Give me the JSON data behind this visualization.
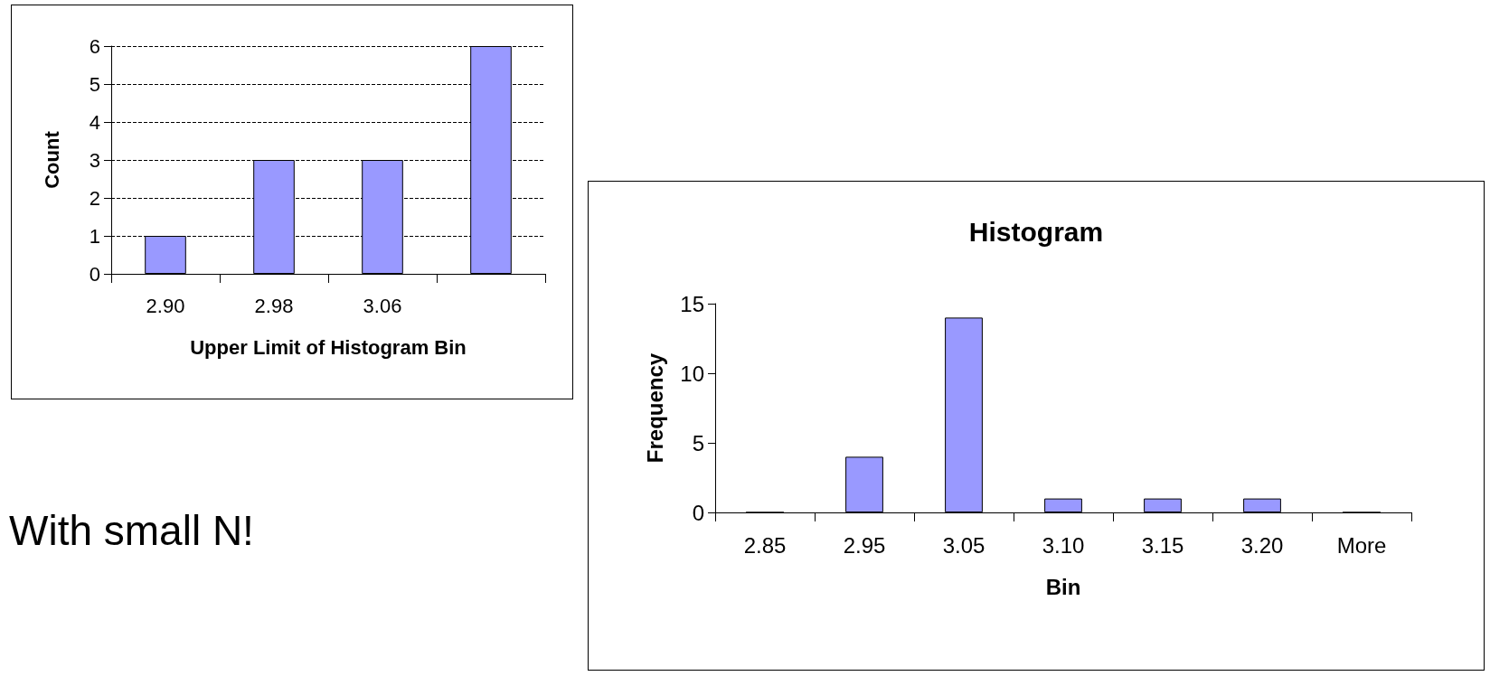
{
  "chart_data": [
    {
      "type": "bar",
      "xlabel": "Upper Limit of Histogram Bin",
      "ylabel": "Count",
      "categories": [
        "2.90",
        "2.98",
        "3.06",
        null
      ],
      "values": [
        1,
        3,
        3,
        6
      ],
      "color": "#9999ff",
      "ylim": [
        0,
        6
      ],
      "yticks": [
        0,
        1,
        2,
        3,
        4,
        5,
        6
      ],
      "grid": "y",
      "annotations": [
        "With small N!"
      ]
    },
    {
      "type": "bar",
      "title": "Histogram",
      "xlabel": "Bin",
      "ylabel": "Frequency",
      "categories": [
        "2.85",
        "2.95",
        "3.05",
        "3.10",
        "3.15",
        "3.20",
        "More"
      ],
      "values": [
        0,
        4,
        14,
        1,
        1,
        1,
        0
      ],
      "color": "#9999ff",
      "ylim": [
        0,
        15
      ],
      "yticks": [
        0,
        5,
        10,
        15
      ],
      "grid": false
    }
  ]
}
